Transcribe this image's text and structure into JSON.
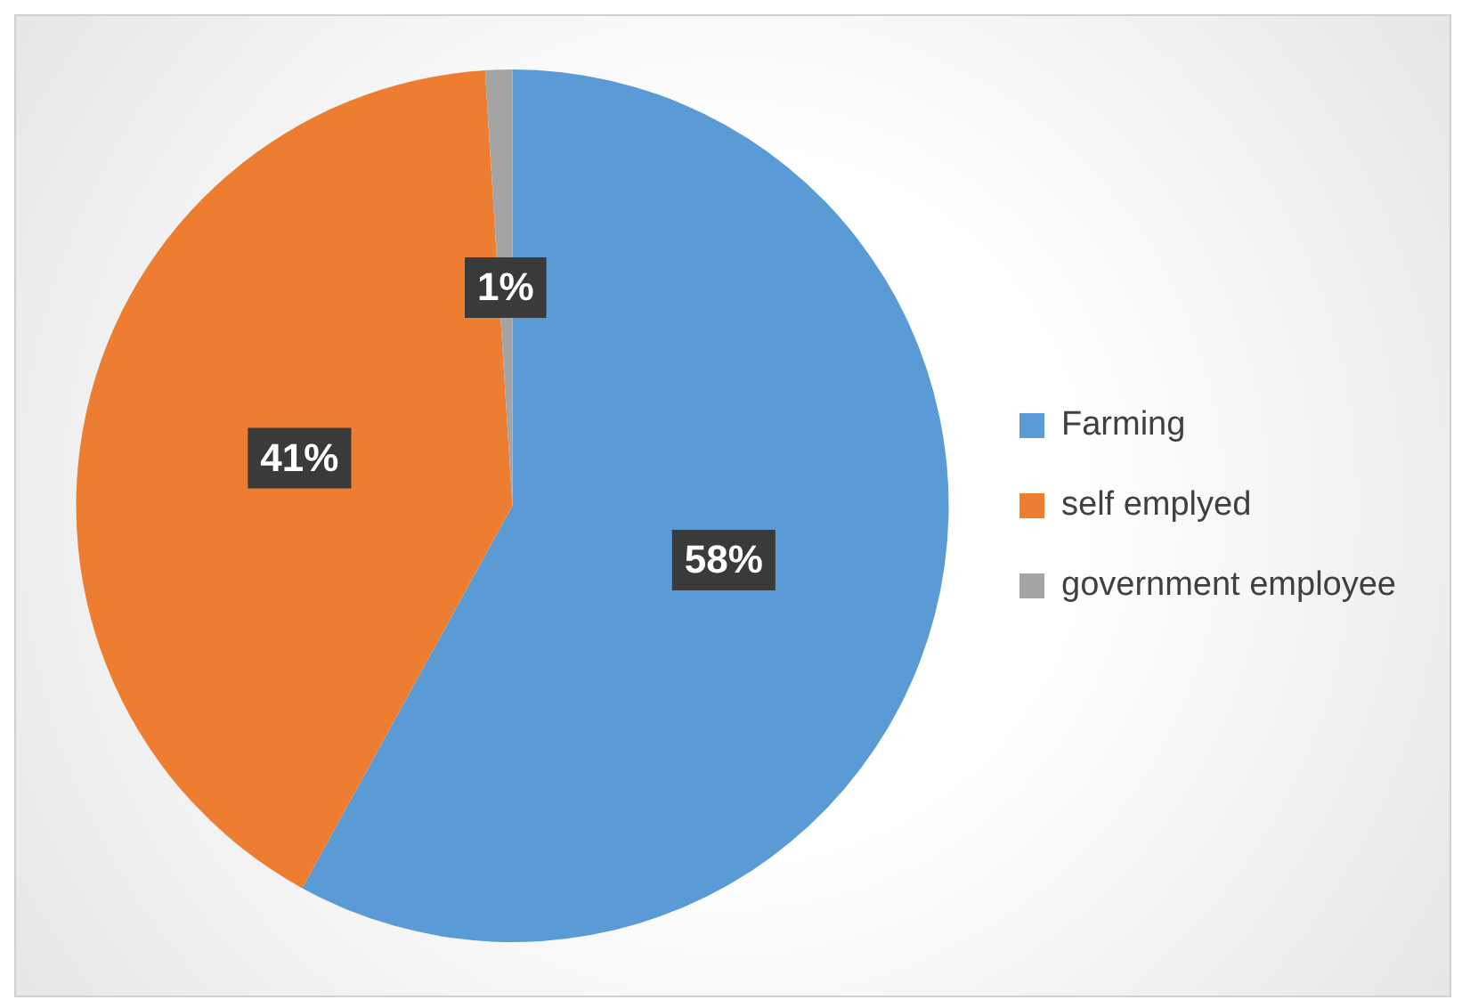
{
  "chart_data": {
    "type": "pie",
    "categories": [
      "Farming",
      "self emplyed",
      "government employee"
    ],
    "values": [
      58,
      41,
      1
    ],
    "colors": [
      "#5b9bd5",
      "#ed7d31",
      "#a5a5a5"
    ],
    "value_labels": [
      "58%",
      "41%",
      "1%"
    ],
    "legend": "right"
  }
}
